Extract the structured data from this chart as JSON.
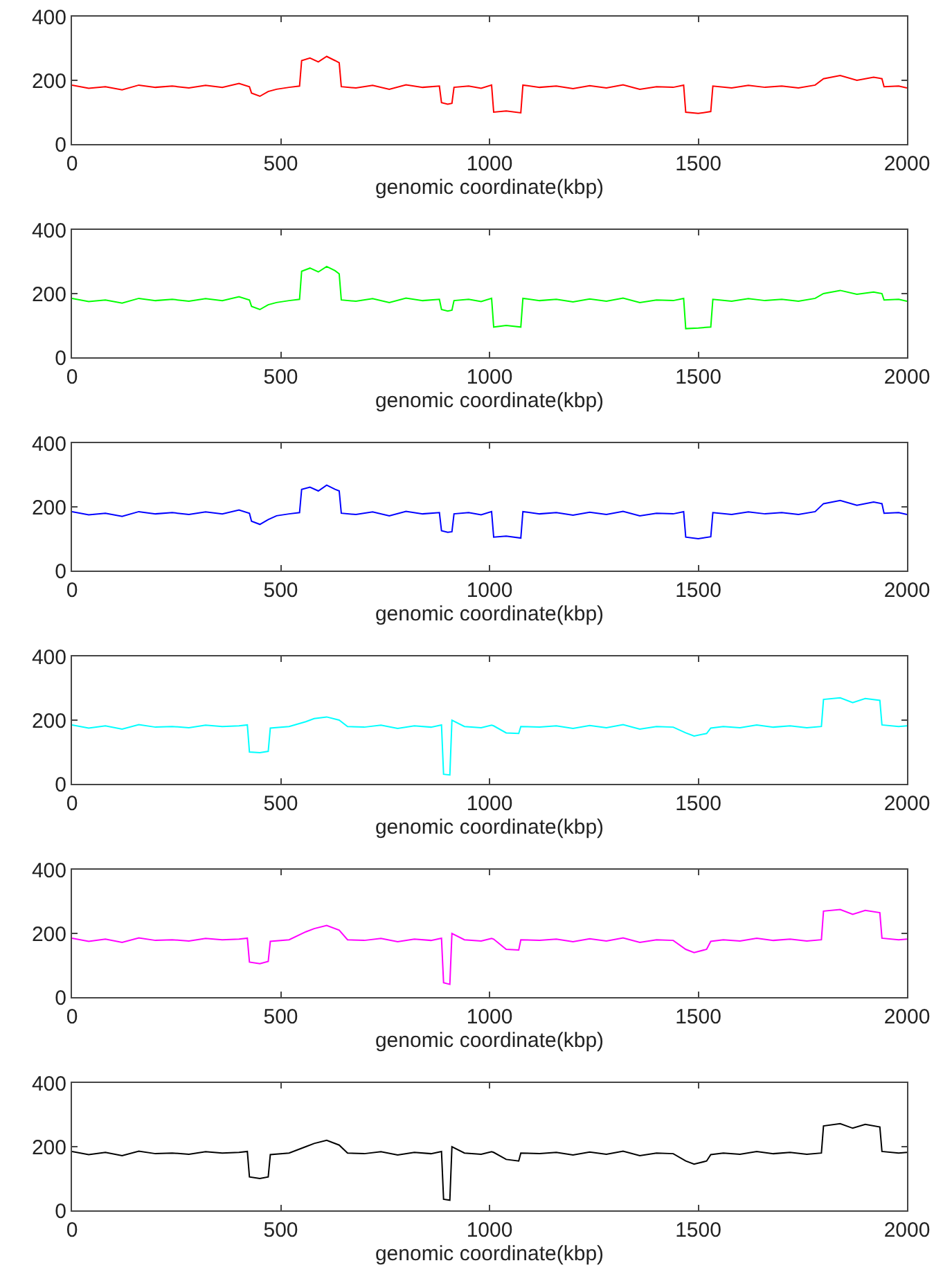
{
  "chart_data": [
    {
      "type": "line",
      "color": "#ff0000",
      "xlabel": "genomic coordinate(kbp)",
      "xlim": [
        0,
        2000
      ],
      "ylim": [
        0,
        400
      ],
      "xticks": [
        0,
        500,
        1000,
        1500,
        2000
      ],
      "yticks": [
        0,
        200,
        400
      ],
      "grid": false,
      "x": [
        0,
        40,
        80,
        120,
        160,
        200,
        240,
        280,
        320,
        360,
        400,
        425,
        430,
        450,
        470,
        490,
        520,
        545,
        550,
        570,
        590,
        610,
        630,
        640,
        645,
        680,
        720,
        760,
        800,
        840,
        880,
        885,
        900,
        910,
        915,
        950,
        980,
        1005,
        1010,
        1040,
        1075,
        1080,
        1120,
        1160,
        1200,
        1240,
        1280,
        1320,
        1360,
        1400,
        1440,
        1465,
        1470,
        1500,
        1530,
        1535,
        1580,
        1620,
        1660,
        1700,
        1740,
        1780,
        1800,
        1840,
        1880,
        1920,
        1940,
        1945,
        1980,
        2000
      ],
      "values": [
        185,
        175,
        180,
        170,
        185,
        178,
        182,
        176,
        184,
        178,
        190,
        180,
        160,
        150,
        165,
        172,
        178,
        182,
        262,
        270,
        258,
        275,
        262,
        255,
        180,
        176,
        184,
        172,
        186,
        178,
        182,
        130,
        125,
        128,
        178,
        182,
        175,
        185,
        100,
        104,
        98,
        185,
        178,
        182,
        174,
        183,
        176,
        186,
        172,
        180,
        178,
        185,
        100,
        96,
        102,
        182,
        176,
        184,
        178,
        182,
        176,
        185,
        205,
        215,
        200,
        210,
        205,
        180,
        182,
        176
      ]
    },
    {
      "type": "line",
      "color": "#00ff00",
      "xlabel": "genomic coordinate(kbp)",
      "xlim": [
        0,
        2000
      ],
      "ylim": [
        0,
        400
      ],
      "xticks": [
        0,
        500,
        1000,
        1500,
        2000
      ],
      "yticks": [
        0,
        200,
        400
      ],
      "grid": false,
      "x": [
        0,
        40,
        80,
        120,
        160,
        200,
        240,
        280,
        320,
        360,
        400,
        425,
        430,
        450,
        470,
        490,
        520,
        545,
        550,
        570,
        590,
        610,
        630,
        640,
        645,
        680,
        720,
        760,
        800,
        840,
        880,
        885,
        900,
        910,
        915,
        950,
        980,
        1005,
        1010,
        1040,
        1075,
        1080,
        1120,
        1160,
        1200,
        1240,
        1280,
        1320,
        1360,
        1400,
        1440,
        1465,
        1470,
        1500,
        1530,
        1535,
        1580,
        1620,
        1660,
        1700,
        1740,
        1780,
        1800,
        1840,
        1880,
        1920,
        1940,
        1945,
        1980,
        2000
      ],
      "values": [
        185,
        175,
        180,
        170,
        185,
        178,
        182,
        176,
        184,
        178,
        190,
        180,
        160,
        150,
        165,
        172,
        178,
        182,
        270,
        280,
        268,
        285,
        272,
        262,
        180,
        176,
        184,
        172,
        186,
        178,
        182,
        150,
        145,
        148,
        178,
        182,
        175,
        185,
        95,
        100,
        95,
        185,
        178,
        182,
        174,
        183,
        176,
        186,
        172,
        180,
        178,
        185,
        90,
        92,
        95,
        182,
        176,
        184,
        178,
        182,
        176,
        185,
        200,
        210,
        198,
        205,
        200,
        180,
        182,
        176
      ]
    },
    {
      "type": "line",
      "color": "#0000ff",
      "xlabel": "genomic coordinate(kbp)",
      "xlim": [
        0,
        2000
      ],
      "ylim": [
        0,
        400
      ],
      "xticks": [
        0,
        500,
        1000,
        1500,
        2000
      ],
      "yticks": [
        0,
        200,
        400
      ],
      "grid": false,
      "x": [
        0,
        40,
        80,
        120,
        160,
        200,
        240,
        280,
        320,
        360,
        400,
        425,
        430,
        450,
        470,
        490,
        520,
        545,
        550,
        570,
        590,
        610,
        630,
        640,
        645,
        680,
        720,
        760,
        800,
        840,
        880,
        885,
        900,
        910,
        915,
        950,
        980,
        1005,
        1010,
        1040,
        1075,
        1080,
        1120,
        1160,
        1200,
        1240,
        1280,
        1320,
        1360,
        1400,
        1440,
        1465,
        1470,
        1500,
        1530,
        1535,
        1580,
        1620,
        1660,
        1700,
        1740,
        1780,
        1800,
        1840,
        1880,
        1920,
        1940,
        1945,
        1980,
        2000
      ],
      "values": [
        185,
        175,
        180,
        170,
        185,
        178,
        182,
        176,
        184,
        178,
        190,
        180,
        155,
        145,
        160,
        172,
        178,
        182,
        255,
        262,
        250,
        268,
        255,
        250,
        180,
        176,
        184,
        172,
        186,
        178,
        182,
        125,
        120,
        122,
        178,
        182,
        175,
        185,
        105,
        108,
        102,
        185,
        178,
        182,
        174,
        183,
        176,
        186,
        172,
        180,
        178,
        185,
        105,
        100,
        106,
        182,
        176,
        184,
        178,
        182,
        176,
        185,
        210,
        220,
        205,
        215,
        210,
        180,
        182,
        176
      ]
    },
    {
      "type": "line",
      "color": "#00ffff",
      "xlabel": "genomic coordinate(kbp)",
      "xlim": [
        0,
        2000
      ],
      "ylim": [
        0,
        400
      ],
      "xticks": [
        0,
        500,
        1000,
        1500,
        2000
      ],
      "yticks": [
        0,
        200,
        400
      ],
      "grid": false,
      "x": [
        0,
        40,
        80,
        120,
        160,
        200,
        240,
        280,
        320,
        360,
        400,
        420,
        425,
        450,
        470,
        475,
        520,
        560,
        580,
        610,
        640,
        660,
        700,
        740,
        780,
        820,
        860,
        885,
        890,
        905,
        910,
        940,
        980,
        1005,
        1010,
        1040,
        1070,
        1075,
        1120,
        1160,
        1200,
        1240,
        1280,
        1320,
        1360,
        1400,
        1440,
        1470,
        1490,
        1520,
        1530,
        1560,
        1600,
        1640,
        1680,
        1720,
        1760,
        1795,
        1800,
        1840,
        1870,
        1900,
        1935,
        1940,
        1980,
        2000
      ],
      "values": [
        185,
        175,
        182,
        172,
        186,
        178,
        180,
        176,
        184,
        180,
        182,
        185,
        100,
        98,
        102,
        175,
        180,
        195,
        205,
        210,
        200,
        180,
        178,
        184,
        174,
        182,
        178,
        185,
        30,
        28,
        200,
        180,
        176,
        184,
        182,
        160,
        158,
        180,
        178,
        182,
        174,
        183,
        176,
        186,
        172,
        180,
        178,
        160,
        150,
        158,
        175,
        180,
        176,
        185,
        178,
        182,
        176,
        180,
        265,
        270,
        255,
        268,
        262,
        185,
        180,
        182
      ]
    },
    {
      "type": "line",
      "color": "#ff00ff",
      "xlabel": "genomic coordinate(kbp)",
      "xlim": [
        0,
        2000
      ],
      "ylim": [
        0,
        400
      ],
      "xticks": [
        0,
        500,
        1000,
        1500,
        2000
      ],
      "yticks": [
        0,
        200,
        400
      ],
      "grid": false,
      "x": [
        0,
        40,
        80,
        120,
        160,
        200,
        240,
        280,
        320,
        360,
        400,
        420,
        425,
        450,
        470,
        475,
        520,
        560,
        580,
        610,
        640,
        660,
        700,
        740,
        780,
        820,
        860,
        885,
        890,
        905,
        910,
        940,
        980,
        1005,
        1010,
        1040,
        1070,
        1075,
        1120,
        1160,
        1200,
        1240,
        1280,
        1320,
        1360,
        1400,
        1440,
        1470,
        1490,
        1520,
        1530,
        1560,
        1600,
        1640,
        1680,
        1720,
        1760,
        1795,
        1800,
        1840,
        1870,
        1900,
        1935,
        1940,
        1980,
        2000
      ],
      "values": [
        185,
        175,
        182,
        172,
        186,
        178,
        180,
        176,
        184,
        180,
        182,
        185,
        110,
        105,
        112,
        175,
        180,
        205,
        215,
        225,
        210,
        180,
        178,
        184,
        174,
        182,
        178,
        185,
        45,
        40,
        200,
        180,
        176,
        184,
        182,
        150,
        148,
        180,
        178,
        182,
        174,
        183,
        176,
        186,
        172,
        180,
        178,
        150,
        140,
        150,
        175,
        180,
        176,
        185,
        178,
        182,
        176,
        180,
        270,
        275,
        260,
        272,
        265,
        185,
        180,
        182
      ]
    },
    {
      "type": "line",
      "color": "#000000",
      "xlabel": "genomic coordinate(kbp)",
      "xlim": [
        0,
        2000
      ],
      "ylim": [
        0,
        400
      ],
      "xticks": [
        0,
        500,
        1000,
        1500,
        2000
      ],
      "yticks": [
        0,
        200,
        400
      ],
      "grid": false,
      "x": [
        0,
        40,
        80,
        120,
        160,
        200,
        240,
        280,
        320,
        360,
        400,
        420,
        425,
        450,
        470,
        475,
        520,
        560,
        580,
        610,
        640,
        660,
        700,
        740,
        780,
        820,
        860,
        885,
        890,
        905,
        910,
        940,
        980,
        1005,
        1010,
        1040,
        1070,
        1075,
        1120,
        1160,
        1200,
        1240,
        1280,
        1320,
        1360,
        1400,
        1440,
        1470,
        1490,
        1520,
        1530,
        1560,
        1600,
        1640,
        1680,
        1720,
        1760,
        1795,
        1800,
        1840,
        1870,
        1900,
        1935,
        1940,
        1980,
        2000
      ],
      "values": [
        185,
        175,
        182,
        172,
        186,
        178,
        180,
        176,
        184,
        180,
        182,
        185,
        105,
        100,
        105,
        175,
        180,
        200,
        210,
        220,
        205,
        180,
        178,
        184,
        174,
        182,
        178,
        185,
        35,
        32,
        200,
        180,
        176,
        184,
        182,
        160,
        155,
        180,
        178,
        182,
        174,
        183,
        176,
        186,
        172,
        180,
        178,
        155,
        145,
        155,
        175,
        180,
        176,
        185,
        178,
        182,
        176,
        180,
        265,
        272,
        258,
        270,
        262,
        185,
        180,
        182
      ]
    }
  ]
}
